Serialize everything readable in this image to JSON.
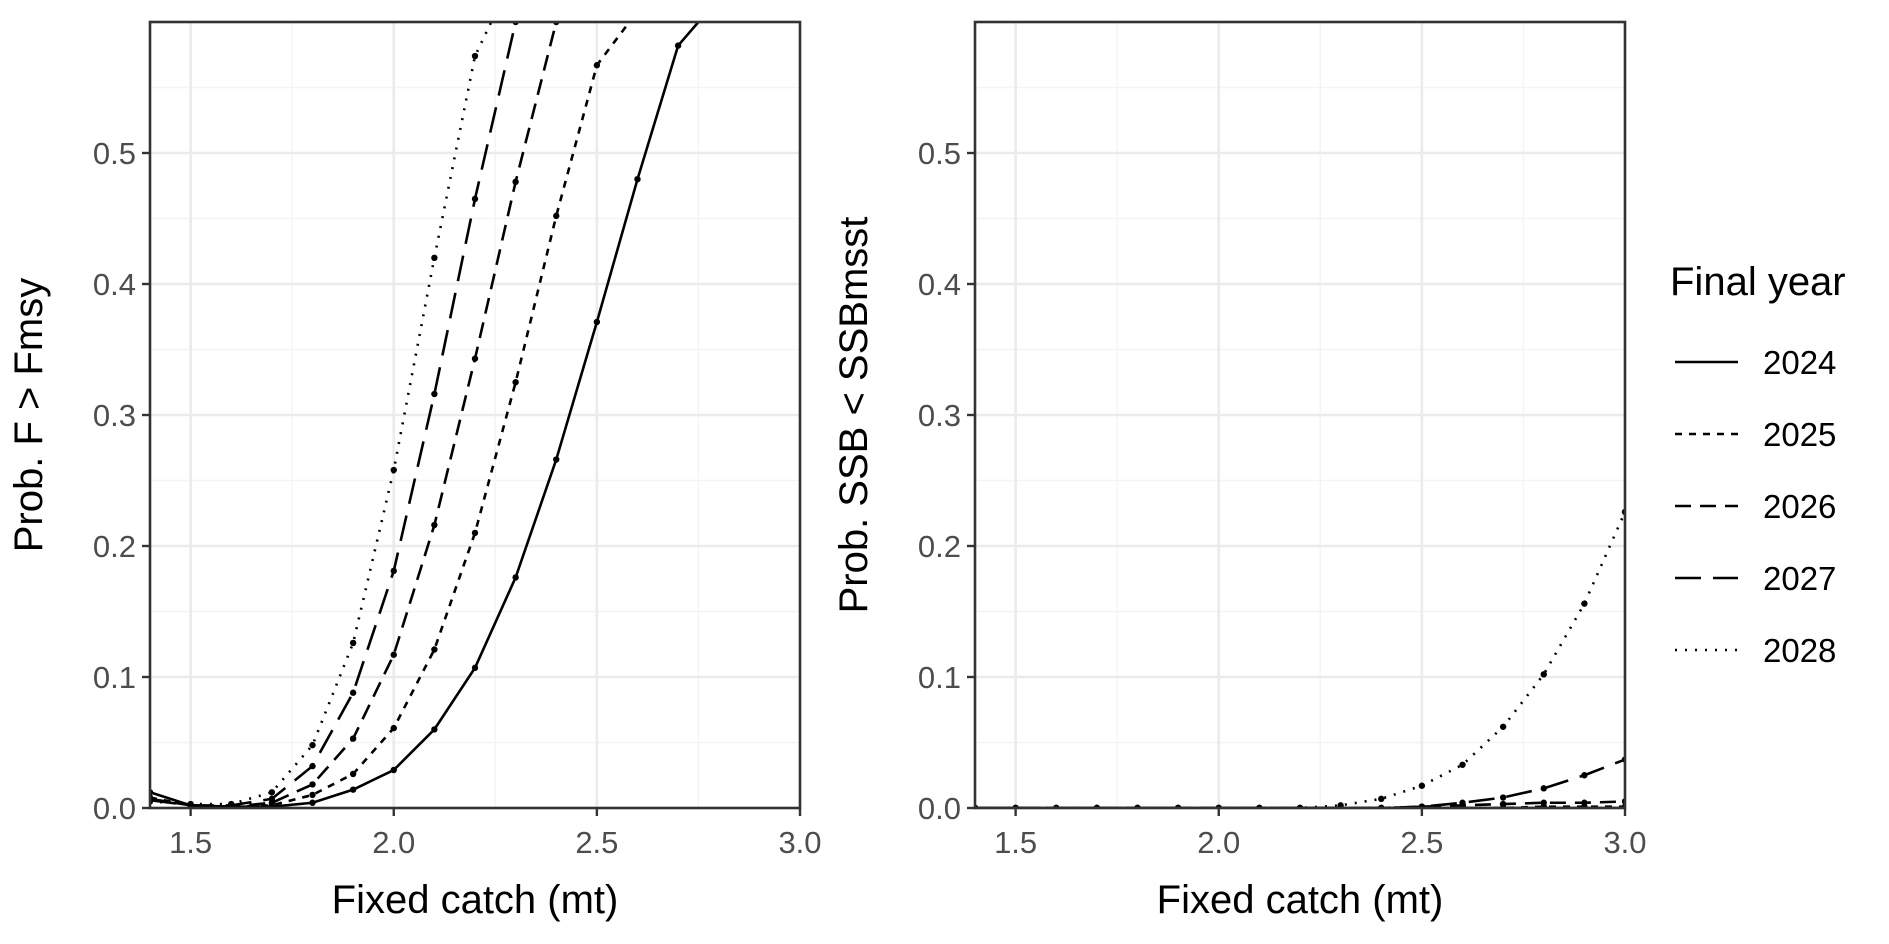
{
  "chart_data": [
    {
      "type": "line",
      "xlabel": "Fixed catch (mt)",
      "ylabel": "Prob. F > Fmsy",
      "xlim": [
        1.4,
        3.0
      ],
      "ylim": [
        0,
        0.6
      ],
      "xticks": [
        1.5,
        2.0,
        2.5,
        3.0
      ],
      "xtick_labels": [
        "1.5",
        "2.0",
        "2.5",
        "3.0"
      ],
      "yticks": [
        0,
        0.1,
        0.2,
        0.3,
        0.4,
        0.5
      ],
      "ytick_labels": [
        "0.0",
        "0.1",
        "0.2",
        "0.3",
        "0.4",
        "0.5"
      ],
      "grid": true,
      "series": [
        {
          "name": "2024",
          "dash": "solid",
          "x": [
            1.4,
            1.5,
            1.6,
            1.7,
            1.8,
            1.9,
            2.0,
            2.1,
            2.2,
            2.3,
            2.4,
            2.5,
            2.6,
            2.7,
            2.75
          ],
          "y": [
            0.012,
            0.002,
            0.001,
            0.001,
            0.004,
            0.014,
            0.029,
            0.06,
            0.107,
            0.176,
            0.266,
            0.371,
            0.48,
            0.582,
            0.6
          ]
        },
        {
          "name": "2025",
          "dash": "short",
          "x": [
            1.4,
            1.5,
            1.6,
            1.7,
            1.8,
            1.9,
            2.0,
            2.1,
            2.2,
            2.3,
            2.4,
            2.5,
            2.58
          ],
          "y": [
            0.008,
            0.002,
            0.001,
            0.002,
            0.01,
            0.026,
            0.061,
            0.121,
            0.21,
            0.325,
            0.452,
            0.567,
            0.6
          ]
        },
        {
          "name": "2026",
          "dash": "medium",
          "x": [
            1.4,
            1.5,
            1.6,
            1.7,
            1.8,
            1.9,
            2.0,
            2.1,
            2.2,
            2.3,
            2.4
          ],
          "y": [
            0.007,
            0.002,
            0.001,
            0.004,
            0.018,
            0.053,
            0.117,
            0.216,
            0.343,
            0.478,
            0.6
          ]
        },
        {
          "name": "2027",
          "dash": "long",
          "x": [
            1.4,
            1.5,
            1.6,
            1.7,
            1.8,
            1.9,
            2.0,
            2.1,
            2.2,
            2.3
          ],
          "y": [
            0.006,
            0.002,
            0.002,
            0.007,
            0.032,
            0.088,
            0.181,
            0.316,
            0.465,
            0.6
          ]
        },
        {
          "name": "2028",
          "dash": "dotted",
          "x": [
            1.4,
            1.5,
            1.6,
            1.7,
            1.8,
            1.9,
            2.0,
            2.1,
            2.2,
            2.24
          ],
          "y": [
            0.005,
            0.003,
            0.003,
            0.012,
            0.048,
            0.126,
            0.258,
            0.42,
            0.574,
            0.6
          ]
        }
      ]
    },
    {
      "type": "line",
      "xlabel": "Fixed catch (mt)",
      "ylabel": "Prob. SSB < SSBmsst",
      "xlim": [
        1.4,
        3.0
      ],
      "ylim": [
        0,
        0.6
      ],
      "xticks": [
        1.5,
        2.0,
        2.5,
        3.0
      ],
      "xtick_labels": [
        "1.5",
        "2.0",
        "2.5",
        "3.0"
      ],
      "yticks": [
        0,
        0.1,
        0.2,
        0.3,
        0.4,
        0.5
      ],
      "ytick_labels": [
        "0.0",
        "0.1",
        "0.2",
        "0.3",
        "0.4",
        "0.5"
      ],
      "grid": true,
      "series": [
        {
          "name": "2024",
          "dash": "solid",
          "x": [
            1.4,
            1.5,
            1.6,
            1.7,
            1.8,
            1.9,
            2.0,
            2.1,
            2.2,
            2.3,
            2.4,
            2.5,
            2.6,
            2.7,
            2.8,
            2.9,
            3.0
          ],
          "y": [
            0,
            0,
            0,
            0,
            0,
            0,
            0,
            0,
            0,
            0,
            0,
            0,
            0,
            0,
            0,
            0,
            0
          ]
        },
        {
          "name": "2025",
          "dash": "short",
          "x": [
            1.4,
            1.5,
            1.6,
            1.7,
            1.8,
            1.9,
            2.0,
            2.1,
            2.2,
            2.3,
            2.4,
            2.5,
            2.6,
            2.7,
            2.8,
            2.9,
            3.0
          ],
          "y": [
            0,
            0,
            0,
            0,
            0,
            0,
            0,
            0,
            0,
            0,
            0,
            0,
            0,
            0,
            0.001,
            0.001,
            0.001
          ]
        },
        {
          "name": "2026",
          "dash": "medium",
          "x": [
            1.4,
            1.5,
            1.6,
            1.7,
            1.8,
            1.9,
            2.0,
            2.1,
            2.2,
            2.3,
            2.4,
            2.5,
            2.6,
            2.7,
            2.8,
            2.9,
            3.0
          ],
          "y": [
            0,
            0,
            0,
            0,
            0,
            0,
            0,
            0,
            0,
            0,
            0,
            0.001,
            0.002,
            0.003,
            0.004,
            0.004,
            0.005
          ]
        },
        {
          "name": "2027",
          "dash": "long",
          "x": [
            1.4,
            1.5,
            1.6,
            1.7,
            1.8,
            1.9,
            2.0,
            2.1,
            2.2,
            2.3,
            2.4,
            2.5,
            2.6,
            2.7,
            2.8,
            2.9,
            3.0
          ],
          "y": [
            0,
            0,
            0,
            0,
            0,
            0,
            0,
            0,
            0,
            0,
            0,
            0.001,
            0.004,
            0.008,
            0.015,
            0.025,
            0.037
          ]
        },
        {
          "name": "2028",
          "dash": "dotted",
          "x": [
            1.4,
            1.5,
            1.6,
            1.7,
            1.8,
            1.9,
            2.0,
            2.1,
            2.2,
            2.3,
            2.4,
            2.5,
            2.6,
            2.7,
            2.8,
            2.9,
            3.0
          ],
          "y": [
            0,
            0,
            0,
            0,
            0,
            0,
            0,
            0,
            0,
            0.002,
            0.007,
            0.017,
            0.033,
            0.062,
            0.102,
            0.156,
            0.226
          ]
        }
      ]
    }
  ],
  "legend": {
    "title": "Final year",
    "placement": "right",
    "items": [
      {
        "label": "2024",
        "dash": "solid"
      },
      {
        "label": "2025",
        "dash": "short"
      },
      {
        "label": "2026",
        "dash": "medium"
      },
      {
        "label": "2027",
        "dash": "long"
      },
      {
        "label": "2028",
        "dash": "dotted"
      }
    ]
  },
  "colors": {
    "ink": "#000000",
    "axis_text": "#4d4d4d",
    "panel_border": "#333333",
    "grid_major": "#ebebeb",
    "grid_minor": "#f4f4f4",
    "background": "#ffffff"
  }
}
